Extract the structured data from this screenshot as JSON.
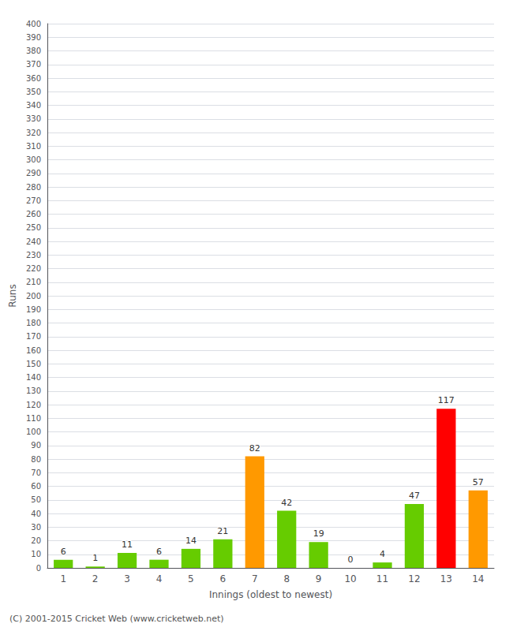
{
  "chart_data": {
    "type": "bar",
    "xlabel": "Innings (oldest to newest)",
    "ylabel": "Runs",
    "categories": [
      1,
      2,
      3,
      4,
      5,
      6,
      7,
      8,
      9,
      10,
      11,
      12,
      13,
      14
    ],
    "values": [
      6,
      1,
      11,
      6,
      14,
      21,
      82,
      42,
      19,
      0,
      4,
      47,
      117,
      57
    ],
    "colors": [
      "#66cc00",
      "#66cc00",
      "#66cc00",
      "#66cc00",
      "#66cc00",
      "#66cc00",
      "#ff9900",
      "#66cc00",
      "#66cc00",
      "#66cc00",
      "#66cc00",
      "#66cc00",
      "#ff0000",
      "#ff9900"
    ],
    "ylim": [
      0,
      400
    ],
    "yticks": [
      0,
      10,
      20,
      30,
      40,
      50,
      60,
      70,
      80,
      90,
      100,
      110,
      120,
      130,
      140,
      150,
      160,
      170,
      180,
      190,
      200,
      210,
      220,
      230,
      240,
      250,
      260,
      270,
      280,
      290,
      300,
      310,
      320,
      330,
      340,
      350,
      360,
      370,
      380,
      390,
      400
    ],
    "grid": true,
    "data_labels": true,
    "annotation": "(C) 2001-2015 Cricket Web (www.cricketweb.net)"
  }
}
